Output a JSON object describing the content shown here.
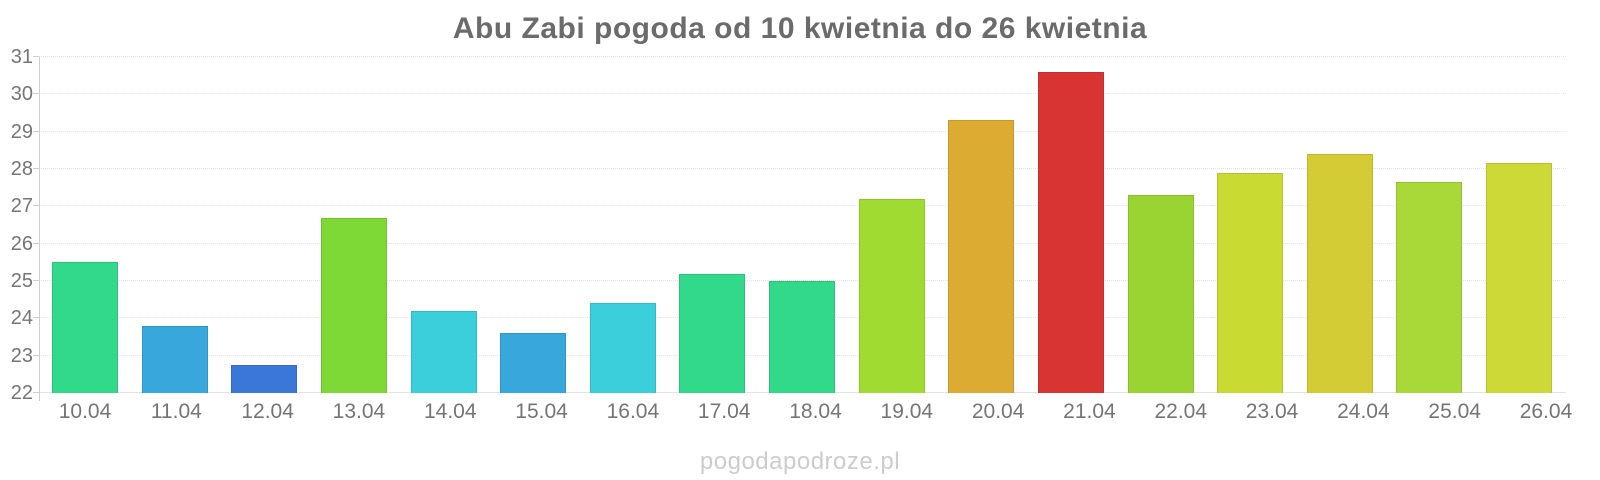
{
  "page": {
    "watermark": "pogodapodroze.pl"
  },
  "chart_data": {
    "type": "bar",
    "title": "Abu Zabi pogoda od 10 kwietnia do 26 kwietnia",
    "xlabel": "",
    "ylabel": "",
    "ylim": [
      22,
      31
    ],
    "yticks": [
      22,
      23,
      24,
      25,
      26,
      27,
      28,
      29,
      30,
      31
    ],
    "grid": true,
    "legend": "none",
    "categories": [
      "10.04",
      "11.04",
      "12.04",
      "13.04",
      "14.04",
      "15.04",
      "16.04",
      "17.04",
      "18.04",
      "19.04",
      "20.04",
      "21.04",
      "22.04",
      "23.04",
      "24.04",
      "25.04",
      "26.04"
    ],
    "values": [
      25.5,
      23.8,
      22.75,
      26.7,
      24.2,
      23.6,
      24.4,
      25.2,
      25.0,
      27.2,
      29.3,
      30.6,
      27.3,
      27.9,
      28.4,
      27.65,
      28.15
    ],
    "colors": [
      "#33d98b",
      "#38a8dc",
      "#3b77d8",
      "#7ed936",
      "#3bcfdc",
      "#38a8dc",
      "#3bcfdc",
      "#33d98b",
      "#33d98b",
      "#a0db32",
      "#dcab32",
      "#d93434",
      "#9ad433",
      "#c9db33",
      "#d4cc34",
      "#a8d938",
      "#ccd936"
    ]
  }
}
